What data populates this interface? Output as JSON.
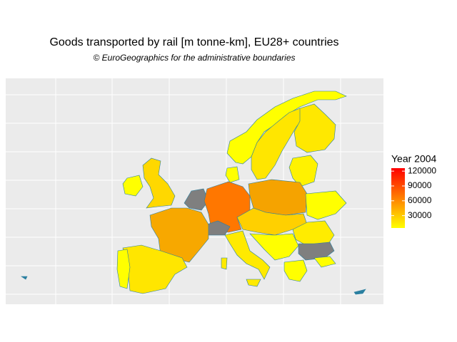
{
  "title": "Goods transported by rail [m tonne-km], EU28+ countries",
  "subtitle": "© EuroGeographics for the administrative boundaries",
  "legend": {
    "title": "Year 2004",
    "colors": [
      "#ffff00",
      "#ff0000"
    ],
    "lim": [
      5000,
      126000
    ],
    "ticks": [
      30000,
      60000,
      90000,
      120000
    ]
  }
}
